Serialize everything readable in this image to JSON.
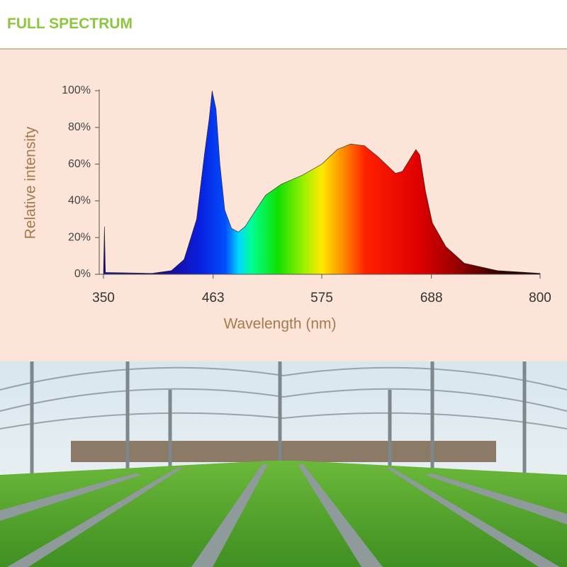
{
  "header": {
    "title": "FULL SPECTRUM"
  },
  "chart_data": {
    "type": "area",
    "xlabel": "Wavelength (nm)",
    "ylabel": "Relative intensity",
    "x": [
      350,
      351,
      352,
      400,
      420,
      433,
      446,
      454,
      459,
      462,
      466,
      470,
      475,
      482,
      489,
      496,
      507,
      517,
      533,
      555,
      575,
      591,
      605,
      619,
      633,
      651,
      658,
      665,
      672,
      676,
      682,
      689,
      703,
      722,
      756,
      800
    ],
    "values": [
      0.5,
      26,
      1,
      0.5,
      2,
      8,
      30,
      65,
      85,
      100,
      90,
      60,
      35,
      25,
      23,
      26,
      35,
      43,
      49,
      54,
      60,
      68,
      71,
      70,
      64,
      55,
      56,
      62,
      68,
      65,
      45,
      28,
      15,
      6,
      2,
      0.5
    ],
    "xlim": [
      350,
      800
    ],
    "ylim": [
      0,
      100
    ],
    "xticks": [
      350,
      463,
      575,
      688,
      800
    ],
    "yticks": [
      {
        "value": 0,
        "label": "0%"
      },
      {
        "value": 20,
        "label": "20%"
      },
      {
        "value": 40,
        "label": "40%"
      },
      {
        "value": 60,
        "label": "60%"
      },
      {
        "value": 80,
        "label": "80%"
      },
      {
        "value": 100,
        "label": "100%"
      }
    ],
    "grid": false
  }
}
